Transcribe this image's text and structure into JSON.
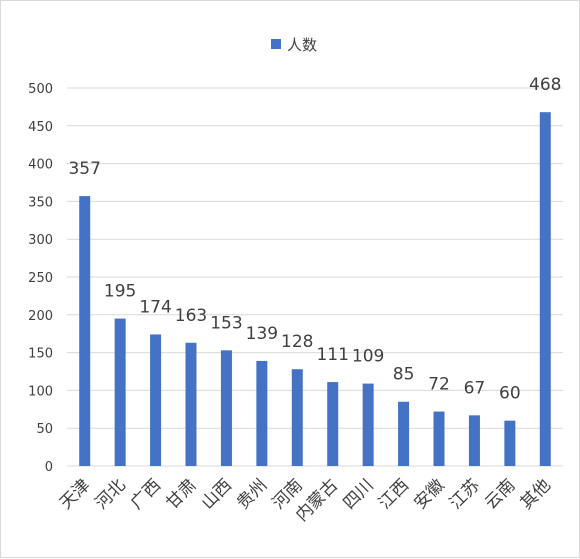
{
  "chart_data": {
    "type": "bar",
    "title": "",
    "xlabel": "",
    "ylabel": "",
    "ylim": [
      0,
      500
    ],
    "yticks": [
      0,
      50,
      100,
      150,
      200,
      250,
      300,
      350,
      400,
      450,
      500
    ],
    "grid": true,
    "legend_position": "top",
    "categories": [
      "天津",
      "河北",
      "广西",
      "甘肃",
      "山西",
      "贵州",
      "河南",
      "内蒙古",
      "四川",
      "江西",
      "安徽",
      "江苏",
      "云南",
      "其他"
    ],
    "series": [
      {
        "name": "人数",
        "color": "#4472c4",
        "values": [
          357,
          195,
          174,
          163,
          153,
          139,
          128,
          111,
          109,
          85,
          72,
          67,
          60,
          468
        ]
      }
    ]
  }
}
